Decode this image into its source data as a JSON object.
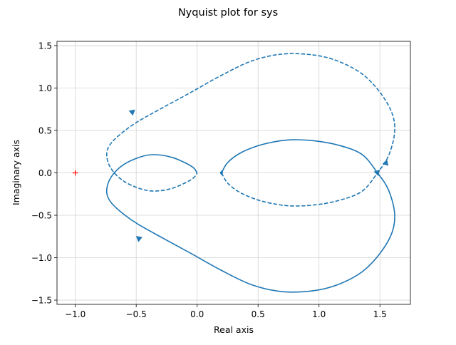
{
  "chart_data": {
    "type": "line",
    "title": "Nyquist plot for sys",
    "xlabel": "Real axis",
    "ylabel": "Imaginary axis",
    "xlim": [
      -1.15,
      1.75
    ],
    "ylim": [
      -1.55,
      1.55
    ],
    "xticks": [
      -1.0,
      -0.5,
      0.0,
      0.5,
      1.0,
      1.5
    ],
    "xtick_labels": [
      "−1.0",
      "−0.5",
      "0.0",
      "0.5",
      "1.0",
      "1.5"
    ],
    "yticks": [
      -1.5,
      -1.0,
      -0.5,
      0.0,
      0.5,
      1.0,
      1.5
    ],
    "ytick_labels": [
      "−1.5",
      "−1.0",
      "−0.5",
      "0.0",
      "0.5",
      "1.0",
      "1.5"
    ],
    "grid": true,
    "color": "#1f77b4",
    "critical_point": {
      "x": -1.0,
      "y": 0.0,
      "marker": "+",
      "color": "#ff0000"
    },
    "series": [
      {
        "style": "solid",
        "x": [
          0.2,
          0.25,
          0.35,
          0.5,
          0.65,
          0.78,
          0.95,
          1.15,
          1.35,
          1.48,
          1.57,
          1.62,
          1.6,
          1.5,
          1.35,
          1.15,
          0.95,
          0.7,
          0.45,
          0.2,
          -0.05,
          -0.28,
          -0.48,
          -0.6,
          -0.7,
          -0.74,
          -0.73,
          -0.68,
          -0.6,
          -0.5,
          -0.4,
          -0.3,
          -0.2,
          -0.1,
          -0.03,
          0.0
        ],
        "y": [
          0.0,
          0.12,
          0.23,
          0.32,
          0.37,
          0.39,
          0.38,
          0.33,
          0.22,
          0.0,
          -0.2,
          -0.47,
          -0.7,
          -0.95,
          -1.17,
          -1.32,
          -1.39,
          -1.4,
          -1.32,
          -1.15,
          -0.95,
          -0.77,
          -0.61,
          -0.49,
          -0.36,
          -0.25,
          -0.12,
          0.0,
          0.1,
          0.17,
          0.21,
          0.21,
          0.18,
          0.12,
          0.06,
          0.0
        ],
        "arrows": [
          {
            "x": 1.48,
            "y": 0.0,
            "dir": [
              0.3,
              -1.0
            ]
          },
          {
            "x": -0.48,
            "y": -0.77,
            "dir": [
              -1.0,
              0.8
            ]
          }
        ]
      },
      {
        "style": "dashed",
        "x": [
          0.2,
          0.25,
          0.35,
          0.5,
          0.65,
          0.78,
          0.95,
          1.15,
          1.35,
          1.48,
          1.57,
          1.62,
          1.6,
          1.5,
          1.35,
          1.15,
          0.95,
          0.7,
          0.45,
          0.2,
          -0.05,
          -0.28,
          -0.48,
          -0.6,
          -0.7,
          -0.74,
          -0.73,
          -0.68,
          -0.6,
          -0.5,
          -0.4,
          -0.3,
          -0.2,
          -0.1,
          -0.03,
          0.0
        ],
        "y": [
          0.0,
          -0.12,
          -0.23,
          -0.32,
          -0.37,
          -0.39,
          -0.38,
          -0.33,
          -0.22,
          0.0,
          0.2,
          0.47,
          0.7,
          0.95,
          1.17,
          1.32,
          1.39,
          1.4,
          1.32,
          1.15,
          0.95,
          0.77,
          0.61,
          0.49,
          0.36,
          0.25,
          0.12,
          0.0,
          -0.1,
          -0.17,
          -0.21,
          -0.21,
          -0.18,
          -0.12,
          -0.06,
          0.0
        ],
        "arrows": [
          {
            "x": 1.55,
            "y": 0.12,
            "dir": [
              0.3,
              1.0
            ]
          },
          {
            "x": -0.53,
            "y": 0.72,
            "dir": [
              1.0,
              0.8
            ]
          }
        ]
      }
    ],
    "markers": [
      {
        "x": 0.2,
        "y": 0.0,
        "shape": "diamond"
      }
    ]
  }
}
